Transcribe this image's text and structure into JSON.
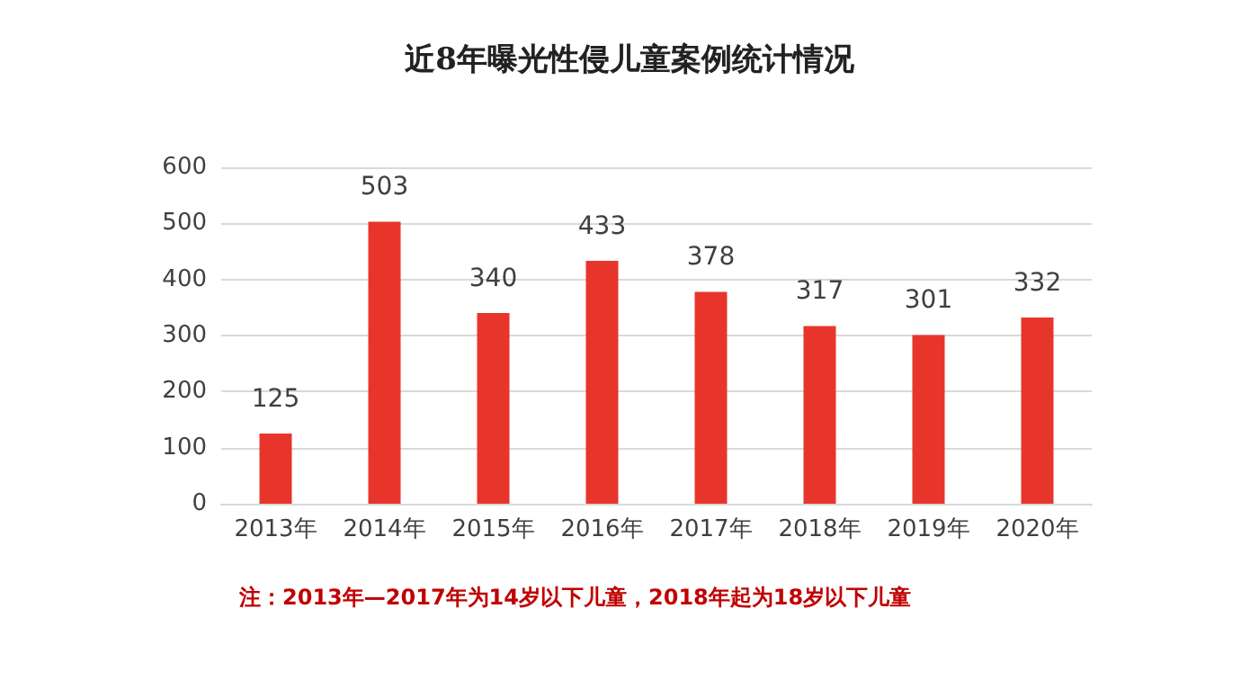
{
  "chart_data": {
    "type": "bar",
    "title": "近8年曝光性侵儿童案例统计情况",
    "categories": [
      "2013年",
      "2014年",
      "2015年",
      "2016年",
      "2017年",
      "2018年",
      "2019年",
      "2020年"
    ],
    "values": [
      125,
      503,
      340,
      433,
      378,
      317,
      301,
      332
    ],
    "color": "#e8352c",
    "ylim": [
      0,
      600
    ],
    "yticks": [
      0,
      100,
      200,
      300,
      400,
      500,
      600
    ],
    "grid": "y",
    "data_labels": true,
    "annotations": [
      "注：2013年—2017年为14岁以下儿童，2018年起为18岁以下儿童"
    ]
  }
}
